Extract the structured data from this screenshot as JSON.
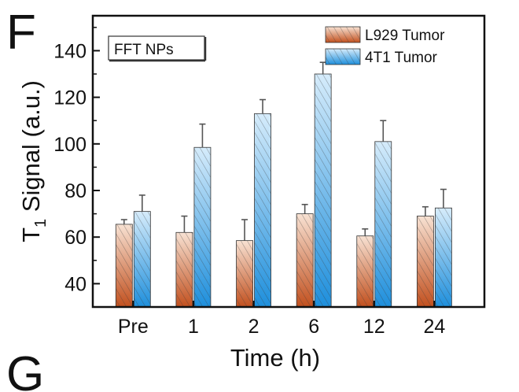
{
  "panel_letters": [
    "F",
    "G"
  ],
  "chart_data": {
    "type": "bar",
    "categories": [
      "Pre",
      "1",
      "2",
      "6",
      "12",
      "24"
    ],
    "series": [
      {
        "name": "L929 Tumor",
        "values": [
          65.5,
          62,
          58.5,
          70,
          60.5,
          69
        ],
        "errors": [
          2,
          7,
          9,
          4,
          3,
          4
        ]
      },
      {
        "name": "4T1 Tumor",
        "values": [
          71,
          98.5,
          113,
          130,
          101,
          72.5
        ],
        "errors": [
          7,
          10,
          6,
          5,
          9,
          8
        ]
      }
    ],
    "inset_label": "FFT NPs",
    "xlabel": "Time (h)",
    "ylabel_main": "T",
    "ylabel_sub": "1",
    "ylabel_rest": " Signal (a.u.)",
    "ylim": [
      30,
      155
    ],
    "yticks": [
      40,
      60,
      80,
      100,
      120,
      140
    ],
    "legend_position": "top-right",
    "grid": false,
    "colors": {
      "L929 Tumor": "#c2501e",
      "4T1 Tumor": "#1e8fdc"
    }
  }
}
